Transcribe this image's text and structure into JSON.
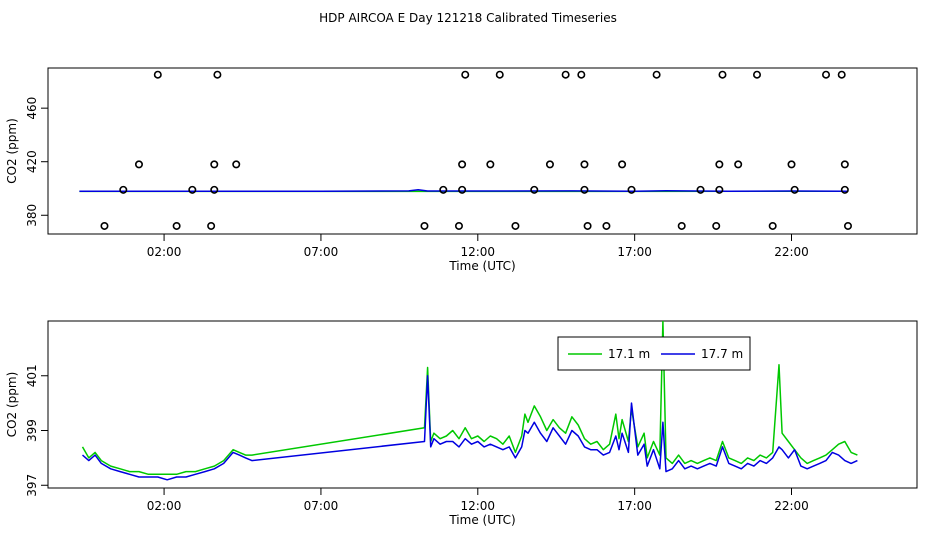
{
  "title": "HDP AIRCOA E  Day 121218  Calibrated Timeseries",
  "colors": {
    "series_a": "#00c800",
    "series_b": "#0000e0",
    "axis": "#000000"
  },
  "chart_data": [
    {
      "type": "scatter",
      "xlabel": "Time (UTC)",
      "ylabel": "CO2 (ppm)",
      "x_unit": "hours",
      "xlim": [
        -1.7,
        26.0
      ],
      "ylim": [
        366,
        490
      ],
      "xticks": [
        {
          "x": 2,
          "label": "02:00"
        },
        {
          "x": 7,
          "label": "07:00"
        },
        {
          "x": 12,
          "label": "12:00"
        },
        {
          "x": 17,
          "label": "17:00"
        },
        {
          "x": 22,
          "label": "22:00"
        }
      ],
      "yticks": [
        380,
        420,
        460
      ],
      "points": [
        [
          0.1,
          372
        ],
        [
          0.7,
          399
        ],
        [
          1.2,
          418
        ],
        [
          1.8,
          485
        ],
        [
          2.4,
          372
        ],
        [
          2.9,
          399
        ],
        [
          3.5,
          372
        ],
        [
          3.6,
          399
        ],
        [
          3.6,
          418
        ],
        [
          3.7,
          485
        ],
        [
          4.3,
          418
        ],
        [
          10.3,
          372
        ],
        [
          10.9,
          399
        ],
        [
          11.4,
          372
        ],
        [
          11.5,
          399
        ],
        [
          11.5,
          418
        ],
        [
          11.6,
          485
        ],
        [
          12.4,
          418
        ],
        [
          12.7,
          485
        ],
        [
          13.2,
          372
        ],
        [
          13.8,
          399
        ],
        [
          14.3,
          418
        ],
        [
          14.8,
          485
        ],
        [
          15.3,
          485
        ],
        [
          15.4,
          418
        ],
        [
          15.4,
          399
        ],
        [
          15.5,
          372
        ],
        [
          16.1,
          372
        ],
        [
          16.6,
          418
        ],
        [
          16.9,
          399
        ],
        [
          17.7,
          485
        ],
        [
          18.5,
          372
        ],
        [
          19.1,
          399
        ],
        [
          19.6,
          372
        ],
        [
          19.7,
          399
        ],
        [
          19.7,
          418
        ],
        [
          19.8,
          485
        ],
        [
          20.3,
          418
        ],
        [
          20.9,
          485
        ],
        [
          21.4,
          372
        ],
        [
          22.0,
          418
        ],
        [
          22.1,
          399
        ],
        [
          23.1,
          485
        ],
        [
          23.6,
          485
        ],
        [
          23.7,
          418
        ],
        [
          23.7,
          399
        ],
        [
          23.8,
          372
        ]
      ],
      "series": [
        {
          "name": "17.1 m",
          "values": [
            [
              -0.7,
              397.8
            ],
            [
              23.8,
              397.9
            ]
          ]
        },
        {
          "name": "17.7 m",
          "values": [
            [
              -0.7,
              398.0
            ],
            [
              1.8,
              397.9
            ],
            [
              4.0,
              397.9
            ],
            [
              7.0,
              398.0
            ],
            [
              9.8,
              398.2
            ],
            [
              10.1,
              399.0
            ],
            [
              10.4,
              398.1
            ],
            [
              12.0,
              398.1
            ],
            [
              15.0,
              398.2
            ],
            [
              17.0,
              398.0
            ],
            [
              18.0,
              398.3
            ],
            [
              20.0,
              398.0
            ],
            [
              22.0,
              398.1
            ],
            [
              23.8,
              398.0
            ]
          ]
        }
      ]
    },
    {
      "type": "line",
      "xlabel": "Time (UTC)",
      "ylabel": "CO2 (ppm)",
      "x_unit": "hours",
      "xlim": [
        -1.7,
        26.0
      ],
      "ylim": [
        396.9,
        403.0
      ],
      "xticks": [
        {
          "x": 2,
          "label": "02:00"
        },
        {
          "x": 7,
          "label": "07:00"
        },
        {
          "x": 12,
          "label": "12:00"
        },
        {
          "x": 17,
          "label": "17:00"
        },
        {
          "x": 22,
          "label": "22:00"
        }
      ],
      "yticks": [
        397,
        399,
        401
      ],
      "legend": {
        "position": "top-center"
      },
      "series": [
        {
          "name": "17.1 m",
          "values": [
            [
              -0.6,
              398.4
            ],
            [
              -0.4,
              398.0
            ],
            [
              -0.2,
              398.2
            ],
            [
              0.0,
              397.9
            ],
            [
              0.3,
              397.7
            ],
            [
              0.6,
              397.6
            ],
            [
              0.9,
              397.5
            ],
            [
              1.2,
              397.5
            ],
            [
              1.5,
              397.4
            ],
            [
              1.8,
              397.4
            ],
            [
              2.1,
              397.4
            ],
            [
              2.4,
              397.4
            ],
            [
              2.7,
              397.5
            ],
            [
              3.0,
              397.5
            ],
            [
              3.3,
              397.6
            ],
            [
              3.6,
              397.7
            ],
            [
              3.9,
              397.9
            ],
            [
              4.2,
              398.3
            ],
            [
              4.4,
              398.2
            ],
            [
              4.6,
              398.1
            ],
            [
              4.8,
              398.1
            ],
            [
              10.3,
              399.1
            ],
            [
              10.4,
              401.3
            ],
            [
              10.5,
              398.6
            ],
            [
              10.6,
              398.9
            ],
            [
              10.8,
              398.7
            ],
            [
              11.0,
              398.8
            ],
            [
              11.2,
              399.0
            ],
            [
              11.4,
              398.7
            ],
            [
              11.6,
              399.1
            ],
            [
              11.8,
              398.7
            ],
            [
              12.0,
              398.8
            ],
            [
              12.2,
              398.6
            ],
            [
              12.4,
              398.8
            ],
            [
              12.6,
              398.7
            ],
            [
              12.8,
              398.5
            ],
            [
              13.0,
              398.8
            ],
            [
              13.2,
              398.2
            ],
            [
              13.4,
              398.8
            ],
            [
              13.5,
              399.6
            ],
            [
              13.6,
              399.3
            ],
            [
              13.8,
              399.9
            ],
            [
              14.0,
              399.5
            ],
            [
              14.2,
              399.0
            ],
            [
              14.4,
              399.4
            ],
            [
              14.6,
              399.1
            ],
            [
              14.8,
              398.9
            ],
            [
              15.0,
              399.5
            ],
            [
              15.2,
              399.2
            ],
            [
              15.4,
              398.7
            ],
            [
              15.6,
              398.5
            ],
            [
              15.8,
              398.6
            ],
            [
              16.0,
              398.3
            ],
            [
              16.2,
              398.5
            ],
            [
              16.4,
              399.6
            ],
            [
              16.5,
              398.7
            ],
            [
              16.6,
              399.4
            ],
            [
              16.8,
              398.6
            ],
            [
              16.9,
              399.8
            ],
            [
              17.1,
              398.4
            ],
            [
              17.3,
              398.9
            ],
            [
              17.4,
              398.0
            ],
            [
              17.6,
              398.6
            ],
            [
              17.8,
              398.1
            ],
            [
              17.9,
              403.0
            ],
            [
              18.0,
              398.0
            ],
            [
              18.2,
              397.8
            ],
            [
              18.4,
              398.1
            ],
            [
              18.6,
              397.8
            ],
            [
              18.8,
              397.9
            ],
            [
              19.0,
              397.8
            ],
            [
              19.2,
              397.9
            ],
            [
              19.4,
              398.0
            ],
            [
              19.6,
              397.9
            ],
            [
              19.8,
              398.6
            ],
            [
              20.0,
              398.0
            ],
            [
              20.2,
              397.9
            ],
            [
              20.4,
              397.8
            ],
            [
              20.6,
              398.0
            ],
            [
              20.8,
              397.9
            ],
            [
              21.0,
              398.1
            ],
            [
              21.2,
              398.0
            ],
            [
              21.4,
              398.2
            ],
            [
              21.6,
              401.4
            ],
            [
              21.7,
              398.9
            ],
            [
              21.9,
              398.6
            ],
            [
              22.1,
              398.3
            ],
            [
              22.3,
              398.0
            ],
            [
              22.5,
              397.8
            ],
            [
              22.7,
              397.9
            ],
            [
              22.9,
              398.0
            ],
            [
              23.1,
              398.1
            ],
            [
              23.3,
              398.3
            ],
            [
              23.5,
              398.5
            ],
            [
              23.7,
              398.6
            ],
            [
              23.9,
              398.2
            ],
            [
              24.1,
              398.1
            ]
          ]
        },
        {
          "name": "17.7 m",
          "values": [
            [
              -0.6,
              398.1
            ],
            [
              -0.4,
              397.9
            ],
            [
              -0.2,
              398.1
            ],
            [
              0.0,
              397.8
            ],
            [
              0.3,
              397.6
            ],
            [
              0.6,
              397.5
            ],
            [
              0.9,
              397.4
            ],
            [
              1.2,
              397.3
            ],
            [
              1.5,
              397.3
            ],
            [
              1.8,
              397.3
            ],
            [
              2.1,
              397.2
            ],
            [
              2.4,
              397.3
            ],
            [
              2.7,
              397.3
            ],
            [
              3.0,
              397.4
            ],
            [
              3.3,
              397.5
            ],
            [
              3.6,
              397.6
            ],
            [
              3.9,
              397.8
            ],
            [
              4.2,
              398.2
            ],
            [
              4.4,
              398.1
            ],
            [
              4.6,
              398.0
            ],
            [
              4.8,
              397.9
            ],
            [
              10.3,
              398.6
            ],
            [
              10.4,
              401.0
            ],
            [
              10.5,
              398.4
            ],
            [
              10.6,
              398.7
            ],
            [
              10.8,
              398.5
            ],
            [
              11.0,
              398.6
            ],
            [
              11.2,
              398.6
            ],
            [
              11.4,
              398.4
            ],
            [
              11.6,
              398.7
            ],
            [
              11.8,
              398.5
            ],
            [
              12.0,
              398.6
            ],
            [
              12.2,
              398.4
            ],
            [
              12.4,
              398.5
            ],
            [
              12.6,
              398.4
            ],
            [
              12.8,
              398.3
            ],
            [
              13.0,
              398.4
            ],
            [
              13.2,
              398.0
            ],
            [
              13.4,
              398.4
            ],
            [
              13.5,
              399.0
            ],
            [
              13.6,
              398.9
            ],
            [
              13.8,
              399.3
            ],
            [
              14.0,
              398.9
            ],
            [
              14.2,
              398.6
            ],
            [
              14.4,
              399.1
            ],
            [
              14.6,
              398.8
            ],
            [
              14.8,
              398.5
            ],
            [
              15.0,
              399.0
            ],
            [
              15.2,
              398.8
            ],
            [
              15.4,
              398.4
            ],
            [
              15.6,
              398.3
            ],
            [
              15.8,
              398.3
            ],
            [
              16.0,
              398.1
            ],
            [
              16.2,
              398.2
            ],
            [
              16.4,
              398.8
            ],
            [
              16.5,
              398.3
            ],
            [
              16.6,
              398.9
            ],
            [
              16.8,
              398.2
            ],
            [
              16.9,
              400.0
            ],
            [
              17.1,
              398.1
            ],
            [
              17.3,
              398.5
            ],
            [
              17.4,
              397.7
            ],
            [
              17.6,
              398.3
            ],
            [
              17.8,
              397.6
            ],
            [
              17.9,
              399.3
            ],
            [
              18.0,
              397.5
            ],
            [
              18.2,
              397.6
            ],
            [
              18.4,
              397.9
            ],
            [
              18.6,
              397.6
            ],
            [
              18.8,
              397.7
            ],
            [
              19.0,
              397.6
            ],
            [
              19.2,
              397.7
            ],
            [
              19.4,
              397.8
            ],
            [
              19.6,
              397.7
            ],
            [
              19.8,
              398.4
            ],
            [
              20.0,
              397.8
            ],
            [
              20.2,
              397.7
            ],
            [
              20.4,
              397.6
            ],
            [
              20.6,
              397.8
            ],
            [
              20.8,
              397.7
            ],
            [
              21.0,
              397.9
            ],
            [
              21.2,
              397.8
            ],
            [
              21.4,
              398.0
            ],
            [
              21.6,
              398.4
            ],
            [
              21.7,
              398.3
            ],
            [
              21.9,
              398.0
            ],
            [
              22.1,
              398.3
            ],
            [
              22.3,
              397.7
            ],
            [
              22.5,
              397.6
            ],
            [
              22.7,
              397.7
            ],
            [
              22.9,
              397.8
            ],
            [
              23.1,
              397.9
            ],
            [
              23.3,
              398.2
            ],
            [
              23.5,
              398.1
            ],
            [
              23.7,
              397.9
            ],
            [
              23.9,
              397.8
            ],
            [
              24.1,
              397.9
            ]
          ]
        }
      ]
    }
  ]
}
